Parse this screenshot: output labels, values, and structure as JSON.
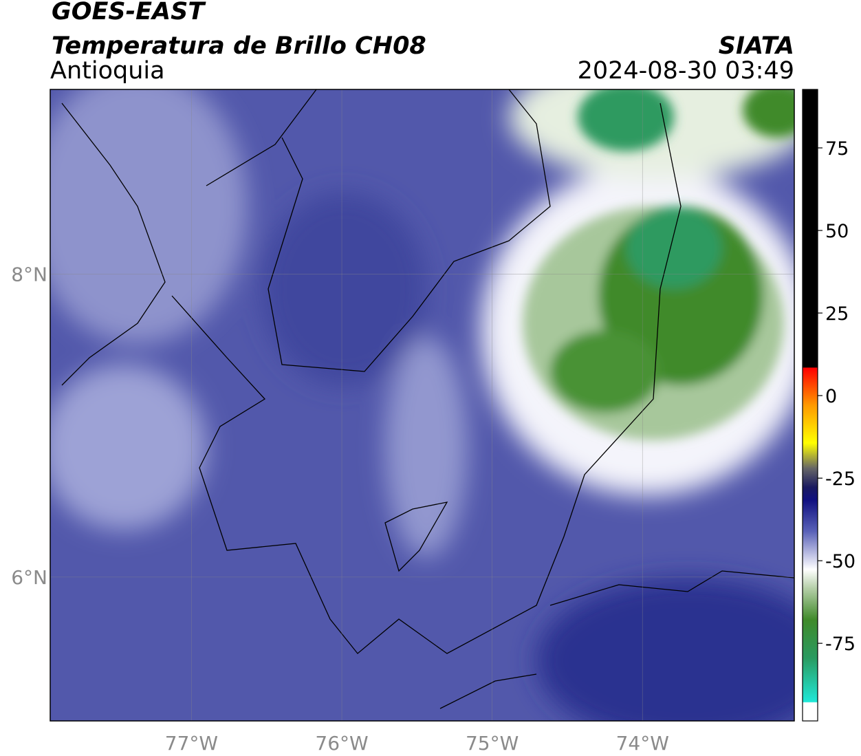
{
  "header": {
    "satellite": "GOES-EAST",
    "product": "Temperatura de Brillo CH08",
    "region": "Antioquia",
    "source": "SIATA",
    "datetime": "2024-08-30 03:49"
  },
  "map": {
    "xlim": [
      -77.94,
      -72.99
    ],
    "ylim": [
      5.05,
      9.22
    ],
    "xticks": [
      {
        "value": -77,
        "label": "77°W"
      },
      {
        "value": -76,
        "label": "76°W"
      },
      {
        "value": -75,
        "label": "75°W"
      },
      {
        "value": -74,
        "label": "74°W"
      }
    ],
    "yticks": [
      {
        "value": 8,
        "label": "8°N"
      },
      {
        "value": 6,
        "label": "6°N"
      }
    ],
    "grid": true
  },
  "colorbar": {
    "lim": [
      -98.5,
      92.7
    ],
    "ticks": [
      75,
      50,
      25,
      0,
      -25,
      -50,
      -75
    ]
  }
}
